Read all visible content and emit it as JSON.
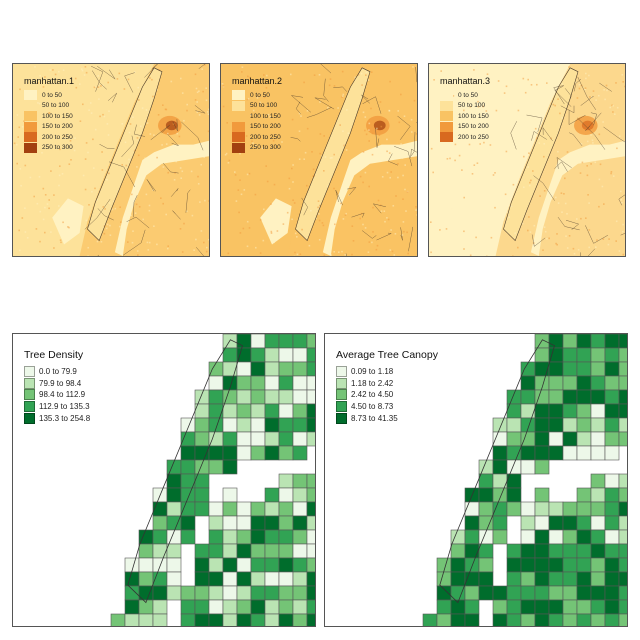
{
  "raster_maps": [
    {
      "title": "manhattan.1",
      "legend": [
        {
          "label": "0 to 50",
          "color": "#fff2c2"
        },
        {
          "label": "50 to 100",
          "color": "#fde29a"
        },
        {
          "label": "100 to 150",
          "color": "#f9c363"
        },
        {
          "label": "150 to 200",
          "color": "#f19a3c"
        },
        {
          "label": "200 to 250",
          "color": "#d8691f"
        },
        {
          "label": "250 to 300",
          "color": "#a24010"
        }
      ]
    },
    {
      "title": "manhattan.2",
      "legend": [
        {
          "label": "0 to 50",
          "color": "#fff2c2"
        },
        {
          "label": "50 to 100",
          "color": "#fde29a"
        },
        {
          "label": "100 to 150",
          "color": "#f9c363"
        },
        {
          "label": "150 to 200",
          "color": "#f19a3c"
        },
        {
          "label": "200 to 250",
          "color": "#d8691f"
        },
        {
          "label": "250 to 300",
          "color": "#a24010"
        }
      ]
    },
    {
      "title": "manhattan.3",
      "legend": [
        {
          "label": "0 to 50",
          "color": "#fff2c2"
        },
        {
          "label": "50 to 100",
          "color": "#fde29a"
        },
        {
          "label": "100 to 150",
          "color": "#f9c363"
        },
        {
          "label": "150 to 200",
          "color": "#f19a3c"
        },
        {
          "label": "200 to 250",
          "color": "#d8691f"
        }
      ]
    }
  ],
  "choropleth_maps": [
    {
      "title": "Tree Density",
      "legend": [
        {
          "label": "0.0 to 79.9",
          "color": "#edf8e9"
        },
        {
          "label": "79.9 to 98.4",
          "color": "#bae4b3"
        },
        {
          "label": "98.4 to 112.9",
          "color": "#74c476"
        },
        {
          "label": "112.9 to 135.3",
          "color": "#31a354"
        },
        {
          "label": "135.3 to 254.8",
          "color": "#006d2c"
        }
      ]
    },
    {
      "title": "Average Tree Canopy",
      "legend": [
        {
          "label": "0.09 to 1.18",
          "color": "#edf8e9"
        },
        {
          "label": "1.18 to 2.42",
          "color": "#bae4b3"
        },
        {
          "label": "2.42 to 4.50",
          "color": "#74c476"
        },
        {
          "label": "4.50 to 8.73",
          "color": "#31a354"
        },
        {
          "label": "8.73 to 41.35",
          "color": "#006d2c"
        }
      ]
    }
  ]
}
